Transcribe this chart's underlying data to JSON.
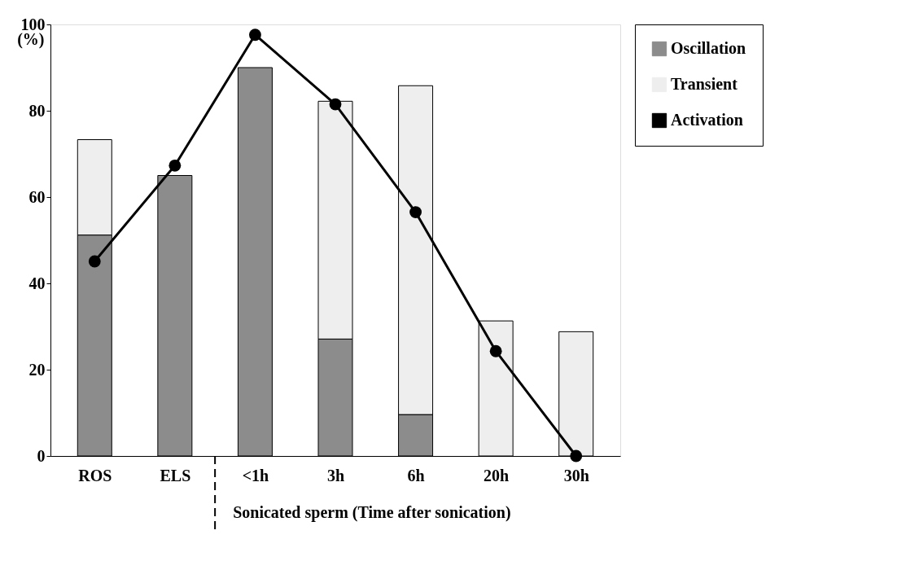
{
  "chart_data": {
    "type": "bar",
    "stacked": true,
    "ylabel": "(%)",
    "categories": [
      "ROS",
      "ELS",
      "<1h",
      "3h",
      "6h",
      "20h",
      "30h"
    ],
    "series": [
      {
        "name": "Oscillation",
        "color": "#8c8c8c",
        "values": [
          51.2,
          65.0,
          90.0,
          27.1,
          9.6,
          null,
          null
        ]
      },
      {
        "name": "Transient",
        "color": "#eeeeee",
        "values": [
          22.1,
          null,
          null,
          55.1,
          76.2,
          31.3,
          28.8
        ]
      },
      {
        "name": "Activation",
        "type": "line",
        "color": "#000000",
        "marker": "circle",
        "values": [
          45.1,
          67.3,
          97.6,
          81.5,
          56.5,
          24.3,
          0
        ]
      }
    ],
    "ylim": [
      0,
      100
    ],
    "yticks": [
      0,
      20,
      40,
      60,
      80,
      100
    ],
    "grid": false,
    "legend": "right",
    "annotations": [
      "Sonicated sperm (Time after sonication)"
    ]
  }
}
